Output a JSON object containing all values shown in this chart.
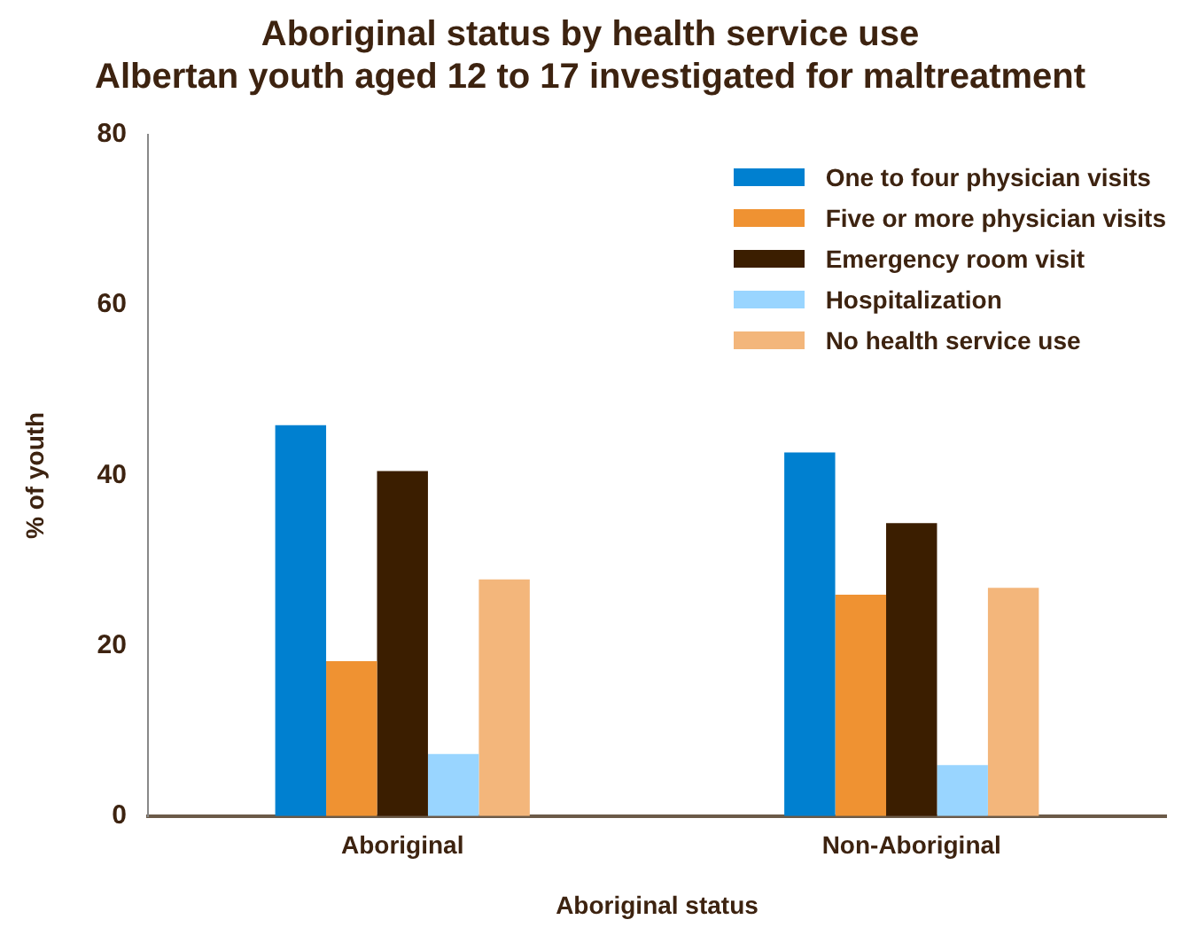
{
  "chart_data": {
    "type": "bar",
    "title": "Aboriginal status by health service use\nAlbertan youth aged 12 to 17 investigated for maltreatment",
    "xlabel": "Aboriginal status",
    "ylabel": "% of youth",
    "categories": [
      "Aboriginal",
      "Non-Aboriginal"
    ],
    "series": [
      {
        "name": "One to four physician visits",
        "color": "#0080d0",
        "values": [
          45.9,
          42.7
        ]
      },
      {
        "name": "Five or more physician visits",
        "color": "#ef9232",
        "values": [
          18.2,
          26.0
        ]
      },
      {
        "name": "Emergency room visit",
        "color": "#3b1e00",
        "values": [
          40.5,
          34.4
        ]
      },
      {
        "name": "Hospitalization",
        "color": "#99d5ff",
        "values": [
          7.3,
          6.0
        ]
      },
      {
        "name": "No health service use",
        "color": "#f3b67b",
        "values": [
          27.8,
          26.8
        ]
      }
    ],
    "ylim": [
      0,
      80
    ],
    "yticks": [
      0,
      20,
      40,
      60,
      80
    ],
    "grid": false,
    "legend": "top right"
  }
}
